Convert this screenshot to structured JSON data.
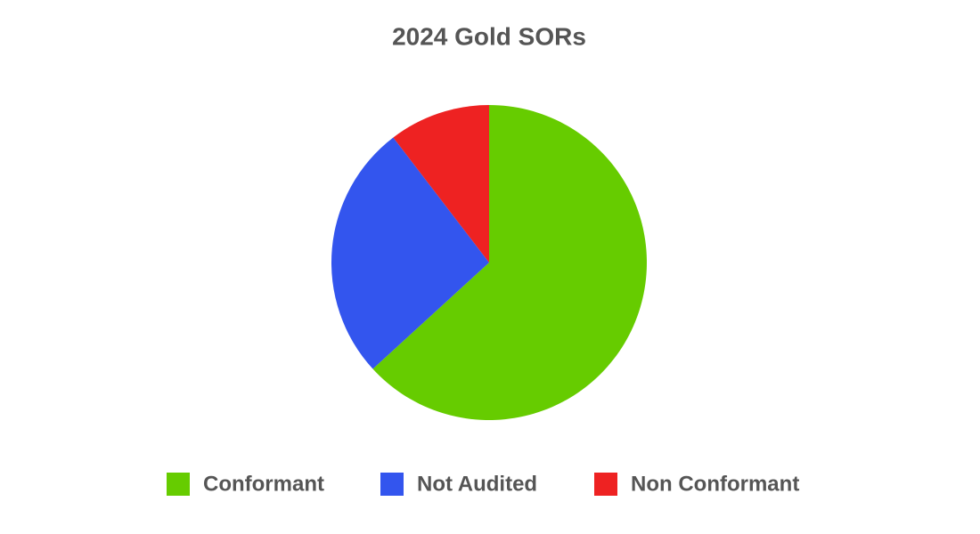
{
  "chart_data": {
    "type": "pie",
    "title": "2024 Gold SORs",
    "categories": [
      "Conformant",
      "Not Audited",
      "Non Conformant"
    ],
    "values": [
      63.2,
      26.4,
      10.4
    ],
    "colors": [
      "#66cc00",
      "#3355ee",
      "#ee2222"
    ],
    "legend": "bottom"
  }
}
